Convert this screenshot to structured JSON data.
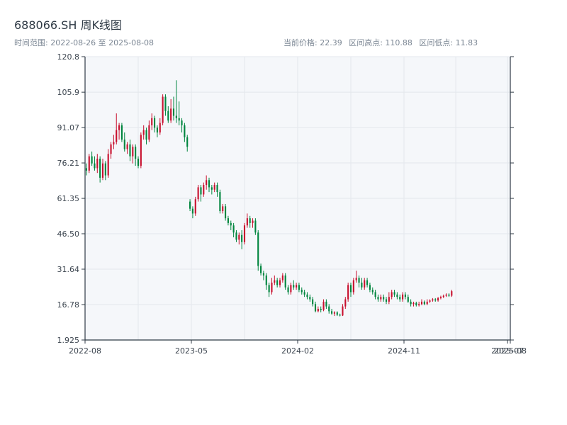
{
  "header": {
    "title": "688066.SH 周K线图",
    "range_label": "时间范围: 2022-08-26 至 2025-08-08",
    "stats": {
      "current_label": "当前价格: 22.39",
      "high_label": "区间高点: 110.88",
      "low_label": "区间低点: 11.83"
    }
  },
  "colors": {
    "up": "#c8102e",
    "down": "#00853e",
    "plot_bg": "#f5f7fa",
    "grid": "#e3e7ec",
    "axis": "#2f3a45"
  },
  "chart_data": {
    "type": "candlestick",
    "title": "688066.SH 周K线图",
    "xlabel": "",
    "ylabel": "",
    "ylim": [
      1.925,
      120.8
    ],
    "yticks": [
      1.925,
      16.78,
      31.64,
      46.5,
      61.35,
      76.21,
      91.07,
      105.9,
      120.8
    ],
    "ytick_labels": [
      "1.925",
      "16.78",
      "31.64",
      "46.50",
      "61.35",
      "76.21",
      "91.07",
      "105.9",
      "120.8"
    ],
    "xlim": [
      0,
      156
    ],
    "xticks": [
      0,
      39,
      78,
      117,
      155,
      156
    ],
    "xtick_labels": [
      "2022-08",
      "2023-05",
      "2024-02",
      "2024-11",
      "2025-07",
      "2025-08"
    ],
    "grid": true,
    "gap_after_index": 37,
    "candles": [
      [
        74.0,
        73.0,
        76.0,
        71.0
      ],
      [
        73.0,
        79.0,
        80.0,
        72.0
      ],
      [
        79.0,
        76.0,
        81.0,
        75.0
      ],
      [
        76.0,
        74.0,
        79.0,
        73.0
      ],
      [
        74.0,
        78.0,
        80.0,
        72.0
      ],
      [
        78.0,
        70.0,
        79.0,
        68.0
      ],
      [
        70.0,
        76.0,
        78.0,
        69.0
      ],
      [
        76.0,
        71.0,
        77.0,
        69.0
      ],
      [
        71.0,
        80.0,
        82.0,
        70.0
      ],
      [
        80.0,
        84.0,
        85.0,
        78.0
      ],
      [
        84.0,
        85.0,
        88.0,
        82.0
      ],
      [
        85.0,
        90.0,
        97.0,
        84.0
      ],
      [
        90.0,
        92.0,
        93.0,
        86.0
      ],
      [
        92.0,
        86.0,
        93.0,
        85.0
      ],
      [
        86.0,
        82.0,
        89.0,
        81.0
      ],
      [
        82.0,
        84.0,
        85.0,
        80.0
      ],
      [
        84.0,
        79.0,
        86.0,
        77.0
      ],
      [
        79.0,
        83.0,
        84.0,
        76.0
      ],
      [
        83.0,
        78.0,
        84.0,
        75.0
      ],
      [
        78.0,
        75.0,
        79.0,
        74.0
      ],
      [
        75.0,
        88.0,
        89.0,
        74.0
      ],
      [
        88.0,
        90.0,
        92.0,
        86.0
      ],
      [
        90.0,
        86.0,
        91.0,
        84.0
      ],
      [
        86.0,
        92.0,
        94.0,
        85.0
      ],
      [
        92.0,
        95.0,
        97.0,
        90.0
      ],
      [
        95.0,
        91.0,
        96.0,
        89.0
      ],
      [
        91.0,
        89.0,
        92.0,
        87.0
      ],
      [
        89.0,
        93.0,
        95.0,
        88.0
      ],
      [
        93.0,
        104.0,
        105.0,
        92.0
      ],
      [
        104.0,
        98.0,
        105.0,
        96.0
      ],
      [
        98.0,
        94.0,
        100.0,
        93.0
      ],
      [
        94.0,
        99.0,
        103.0,
        93.0
      ],
      [
        99.0,
        96.0,
        104.0,
        94.0
      ],
      [
        96.0,
        95.0,
        110.9,
        93.0
      ],
      [
        95.0,
        94.0,
        102.0,
        92.0
      ],
      [
        94.0,
        92.0,
        95.0,
        89.0
      ],
      [
        92.0,
        87.0,
        93.0,
        85.0
      ],
      [
        87.0,
        83.0,
        88.0,
        81.0
      ],
      [
        60.0,
        57.0,
        61.0,
        56.0
      ],
      [
        57.0,
        55.0,
        58.0,
        53.0
      ],
      [
        55.0,
        61.0,
        62.0,
        54.0
      ],
      [
        61.0,
        66.0,
        67.0,
        60.0
      ],
      [
        66.0,
        63.0,
        67.0,
        60.0
      ],
      [
        63.0,
        67.0,
        68.0,
        62.0
      ],
      [
        67.0,
        69.0,
        71.0,
        65.0
      ],
      [
        69.0,
        66.0,
        70.0,
        64.0
      ],
      [
        66.0,
        65.0,
        67.0,
        63.0
      ],
      [
        65.0,
        67.0,
        68.0,
        64.0
      ],
      [
        67.0,
        64.0,
        68.0,
        62.0
      ],
      [
        64.0,
        56.0,
        65.0,
        55.0
      ],
      [
        56.0,
        58.0,
        59.0,
        55.0
      ],
      [
        58.0,
        53.0,
        59.0,
        52.0
      ],
      [
        53.0,
        51.0,
        54.0,
        50.0
      ],
      [
        51.0,
        50.0,
        52.0,
        48.0
      ],
      [
        50.0,
        47.0,
        51.0,
        45.0
      ],
      [
        47.0,
        44.0,
        48.0,
        43.0
      ],
      [
        44.0,
        46.0,
        47.0,
        42.0
      ],
      [
        46.0,
        43.0,
        48.0,
        40.0
      ],
      [
        43.0,
        50.0,
        51.0,
        42.0
      ],
      [
        50.0,
        53.0,
        55.0,
        49.0
      ],
      [
        53.0,
        51.0,
        54.0,
        49.0
      ],
      [
        51.0,
        52.0,
        53.0,
        49.0
      ],
      [
        52.0,
        47.0,
        53.0,
        46.0
      ],
      [
        47.0,
        33.0,
        48.0,
        31.0
      ],
      [
        33.0,
        30.0,
        34.0,
        29.0
      ],
      [
        30.0,
        29.0,
        31.0,
        27.0
      ],
      [
        29.0,
        25.0,
        30.0,
        23.0
      ],
      [
        25.0,
        22.0,
        26.0,
        20.0
      ],
      [
        22.0,
        26.0,
        28.0,
        21.0
      ],
      [
        26.0,
        27.0,
        29.0,
        25.0
      ],
      [
        27.0,
        25.0,
        28.0,
        24.0
      ],
      [
        25.0,
        27.0,
        28.0,
        24.0
      ],
      [
        27.0,
        29.0,
        30.0,
        26.0
      ],
      [
        29.0,
        24.0,
        30.0,
        23.0
      ],
      [
        24.0,
        22.0,
        25.0,
        21.0
      ],
      [
        22.0,
        25.0,
        26.0,
        21.0
      ],
      [
        25.0,
        24.0,
        27.0,
        23.0
      ],
      [
        24.0,
        25.0,
        26.0,
        23.0
      ],
      [
        25.0,
        23.0,
        26.0,
        22.0
      ],
      [
        23.0,
        22.0,
        24.0,
        21.0
      ],
      [
        22.0,
        21.0,
        23.0,
        20.0
      ],
      [
        21.0,
        20.0,
        22.0,
        19.0
      ],
      [
        20.0,
        19.0,
        21.0,
        18.0
      ],
      [
        19.0,
        17.0,
        20.0,
        16.0
      ],
      [
        17.0,
        14.0,
        18.0,
        13.5
      ],
      [
        14.0,
        15.0,
        16.0,
        13.5
      ],
      [
        15.0,
        14.5,
        16.0,
        13.5
      ],
      [
        14.5,
        18.0,
        19.0,
        14.0
      ],
      [
        18.0,
        16.0,
        19.0,
        15.0
      ],
      [
        16.0,
        14.0,
        17.0,
        13.0
      ],
      [
        14.0,
        13.0,
        15.0,
        12.5
      ],
      [
        13.0,
        13.5,
        14.0,
        12.0
      ],
      [
        13.5,
        12.5,
        14.0,
        12.0
      ],
      [
        12.5,
        12.2,
        13.0,
        11.83
      ],
      [
        12.2,
        16.0,
        17.0,
        12.0
      ],
      [
        16.0,
        19.0,
        20.0,
        15.0
      ],
      [
        19.0,
        25.0,
        26.0,
        18.0
      ],
      [
        25.0,
        22.0,
        26.0,
        20.0
      ],
      [
        22.0,
        27.0,
        28.0,
        21.0
      ],
      [
        27.0,
        28.0,
        31.0,
        26.0
      ],
      [
        28.0,
        26.0,
        29.0,
        24.0
      ],
      [
        26.0,
        24.0,
        28.0,
        23.0
      ],
      [
        24.0,
        27.0,
        28.0,
        23.0
      ],
      [
        27.0,
        25.0,
        28.0,
        24.0
      ],
      [
        25.0,
        23.0,
        26.0,
        22.0
      ],
      [
        23.0,
        22.0,
        24.0,
        21.0
      ],
      [
        22.0,
        20.0,
        23.0,
        19.0
      ],
      [
        20.0,
        19.0,
        21.0,
        18.0
      ],
      [
        19.0,
        20.0,
        21.0,
        18.0
      ],
      [
        20.0,
        19.0,
        21.0,
        18.0
      ],
      [
        19.0,
        18.0,
        20.0,
        17.0
      ],
      [
        18.0,
        20.0,
        22.0,
        17.0
      ],
      [
        20.0,
        22.0,
        23.0,
        19.0
      ],
      [
        22.0,
        21.0,
        23.0,
        20.0
      ],
      [
        21.0,
        20.0,
        22.0,
        19.0
      ],
      [
        20.0,
        19.0,
        21.0,
        18.0
      ],
      [
        19.0,
        21.0,
        22.0,
        18.0
      ],
      [
        21.0,
        20.0,
        22.0,
        19.0
      ],
      [
        20.0,
        18.0,
        21.0,
        17.5
      ],
      [
        18.0,
        17.0,
        19.0,
        16.0
      ],
      [
        17.0,
        17.5,
        18.0,
        16.0
      ],
      [
        17.5,
        16.5,
        18.0,
        16.0
      ],
      [
        16.5,
        17.0,
        18.0,
        16.0
      ],
      [
        17.0,
        18.0,
        19.0,
        16.5
      ],
      [
        18.0,
        17.0,
        18.5,
        16.5
      ],
      [
        17.0,
        18.0,
        19.0,
        16.5
      ],
      [
        18.0,
        18.5,
        19.0,
        17.5
      ],
      [
        18.5,
        19.0,
        19.5,
        18.0
      ],
      [
        19.0,
        18.5,
        19.5,
        18.0
      ],
      [
        18.5,
        19.5,
        20.0,
        18.0
      ],
      [
        19.5,
        20.0,
        20.5,
        19.0
      ],
      [
        20.0,
        20.5,
        21.0,
        19.5
      ],
      [
        20.5,
        21.0,
        21.5,
        20.0
      ],
      [
        21.0,
        20.5,
        21.5,
        20.0
      ],
      [
        20.5,
        22.39,
        23.0,
        20.0
      ]
    ]
  }
}
